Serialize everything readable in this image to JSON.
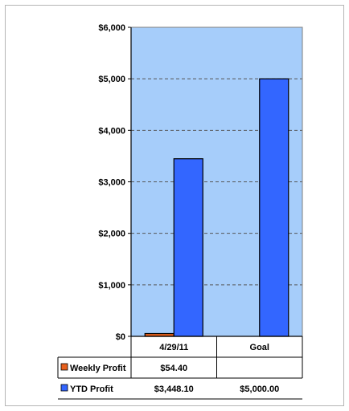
{
  "chart_data": {
    "type": "bar",
    "categories": [
      "4/29/11",
      "Goal"
    ],
    "series": [
      {
        "name": "Weekly Profit",
        "values": [
          54.4,
          null
        ],
        "labels": [
          "$54.40",
          ""
        ],
        "color": "#e8601c"
      },
      {
        "name": "YTD Profit",
        "values": [
          3448.1,
          5000.0
        ],
        "labels": [
          "$3,448.10",
          "$5,000.00"
        ],
        "color": "#3366ff"
      }
    ],
    "yticks": [
      "$0",
      "$1,000",
      "$2,000",
      "$3,000",
      "$4,000",
      "$5,000",
      "$6,000"
    ],
    "ylim": [
      0,
      6000
    ],
    "ytick_step": 1000,
    "grid": true,
    "plot_background": "#a6cdfa",
    "legend": "data-table"
  }
}
